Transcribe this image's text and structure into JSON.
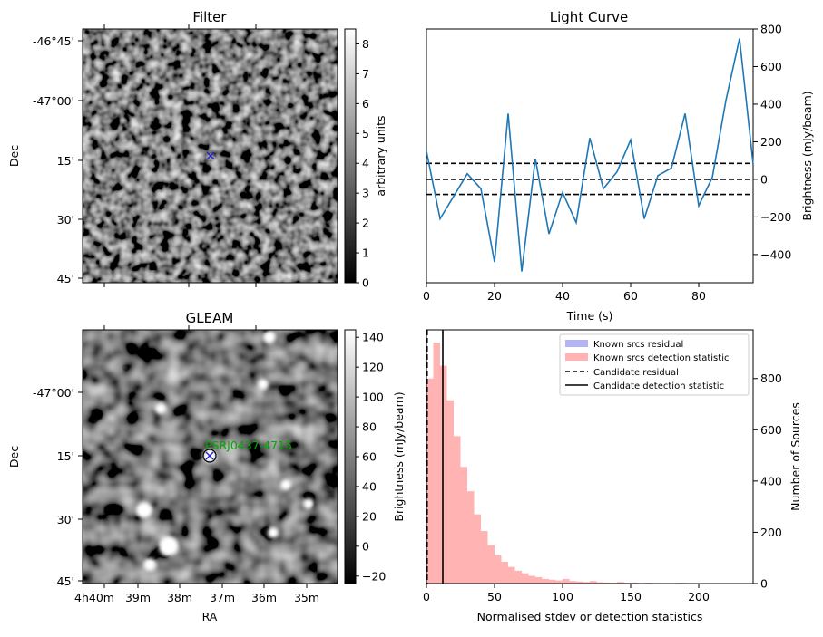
{
  "chart_data": [
    {
      "type": "heatmap",
      "title": "Filter",
      "ylabel": "Dec",
      "ytick_labels": [
        "-46°45'",
        "-47°00'",
        "15'",
        "30'",
        "45'"
      ],
      "colorbar": {
        "label": "arbitrary units",
        "range": [
          0,
          8.5
        ],
        "ticks": [
          0,
          1,
          2,
          3,
          4,
          5,
          6,
          7,
          8
        ],
        "colormap": "gray"
      },
      "marker": {
        "symbol": "x",
        "color": "#2222cc"
      }
    },
    {
      "type": "line",
      "title": "Light Curve",
      "xlabel": "Time (s)",
      "ylabel": "Brightness (mJy/beam)",
      "xlim": [
        0,
        96
      ],
      "ylim": [
        -550,
        800
      ],
      "xticks": [
        0,
        20,
        40,
        60,
        80
      ],
      "yticks": [
        -400,
        -200,
        0,
        200,
        400,
        600,
        800
      ],
      "x": [
        0,
        4,
        8,
        12,
        16,
        20,
        24,
        28,
        32,
        36,
        40,
        44,
        48,
        52,
        56,
        60,
        64,
        68,
        72,
        76,
        80,
        84,
        88,
        92,
        96
      ],
      "values": [
        150,
        -210,
        -90,
        30,
        -50,
        -440,
        350,
        -490,
        110,
        -290,
        -70,
        -230,
        220,
        -50,
        40,
        210,
        -210,
        20,
        60,
        350,
        -140,
        10,
        420,
        750,
        80
      ],
      "color": "#1f77b4",
      "hlines": [
        {
          "y": 85,
          "style": "dashed"
        },
        {
          "y": 0,
          "style": "dashed"
        },
        {
          "y": -80,
          "style": "dashed"
        }
      ]
    },
    {
      "type": "heatmap",
      "title": "GLEAM",
      "xlabel": "RA",
      "ylabel": "Dec",
      "xtick_labels": [
        "4h40m",
        "39m",
        "38m",
        "37m",
        "36m",
        "35m"
      ],
      "ytick_labels": [
        "-47°00'",
        "15'",
        "30'",
        "45'"
      ],
      "annotation": "PSRJ0437-4715",
      "annotation_color": "#00aa00",
      "colorbar": {
        "label": "Brightness (mJy/beam)",
        "range": [
          -25,
          145
        ],
        "ticks": [
          -20,
          0,
          20,
          40,
          60,
          80,
          100,
          120,
          140
        ],
        "colormap": "gray"
      },
      "marker": {
        "symbol": "x",
        "color": "#2222cc"
      }
    },
    {
      "type": "bar",
      "xlabel": "Normalised stdev or detection statistics",
      "ylabel": "Number of Sources",
      "xlim": [
        0,
        240
      ],
      "ylim": [
        0,
        990
      ],
      "xticks": [
        0,
        50,
        100,
        150,
        200
      ],
      "yticks": [
        0,
        200,
        400,
        600,
        800
      ],
      "bin_width": 5,
      "series": [
        {
          "name": "Known srcs residual",
          "color": "#b3b3f5",
          "bin_starts": [
            0
          ],
          "values": [
            40
          ]
        },
        {
          "name": "Known srcs detection statistic",
          "color": "#ffb3b3",
          "bin_starts": [
            0,
            5,
            10,
            15,
            20,
            25,
            30,
            35,
            40,
            45,
            50,
            55,
            60,
            65,
            70,
            75,
            80,
            85,
            90,
            95,
            100,
            105,
            110,
            115,
            120,
            125,
            130,
            135,
            140,
            145,
            150,
            155,
            160,
            165,
            170,
            175,
            180,
            185,
            190,
            195,
            200,
            205,
            210,
            215,
            220,
            225,
            230,
            235
          ],
          "values": [
            800,
            940,
            850,
            715,
            575,
            455,
            360,
            270,
            205,
            150,
            110,
            85,
            65,
            50,
            40,
            30,
            25,
            18,
            15,
            12,
            18,
            10,
            8,
            6,
            10,
            5,
            4,
            3,
            6,
            3,
            4,
            2,
            3,
            2,
            2,
            1,
            2,
            3,
            2,
            1,
            1,
            1,
            0,
            1,
            1,
            0,
            0,
            0
          ]
        }
      ],
      "vlines": [
        {
          "name": "Candidate residual",
          "x": 0.5,
          "style": "dashed"
        },
        {
          "name": "Candidate detection statistic",
          "x": 12,
          "style": "solid"
        }
      ],
      "legend_position": "top-right"
    }
  ]
}
